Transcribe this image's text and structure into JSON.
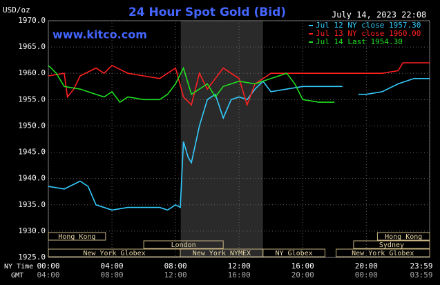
{
  "chart_data": {
    "type": "line",
    "title": "24 Hour Spot Gold (Bid)",
    "date": "July 14, 2023 22:08",
    "y_unit": "USD/oz",
    "watermark": "www.kitco.com",
    "x_axis_label": "NY Time",
    "x2_axis_label": "GMT",
    "xlim": [
      0,
      23.983
    ],
    "xticks": [
      {
        "value": 0,
        "label": "00:00"
      },
      {
        "value": 4,
        "label": "04:00"
      },
      {
        "value": 8,
        "label": "08:00"
      },
      {
        "value": 12,
        "label": "12:00"
      },
      {
        "value": 16,
        "label": "16:00"
      },
      {
        "value": 20,
        "label": "20:00"
      },
      {
        "value": 23.983,
        "label": "23:59"
      }
    ],
    "gmt_labels": [
      "04:00",
      "08:00",
      "12:00",
      "16:00",
      "20:00",
      "00:00",
      "03:59"
    ],
    "ylim": [
      1925,
      1970
    ],
    "yticks": [
      {
        "value": 1925,
        "label": "1925.0"
      },
      {
        "value": 1930,
        "label": "1930.0"
      },
      {
        "value": 1935,
        "label": "1935.0"
      },
      {
        "value": 1940,
        "label": "1940.0"
      },
      {
        "value": 1945,
        "label": "1945.0"
      },
      {
        "value": 1950,
        "label": "1950.0"
      },
      {
        "value": 1955,
        "label": "1955.0"
      },
      {
        "value": 1960,
        "label": "1960.0"
      },
      {
        "value": 1965,
        "label": "1965.0"
      },
      {
        "value": 1970,
        "label": "1970.0"
      }
    ],
    "grid": true,
    "legend": "top-right",
    "sessions": [
      "Hong Kong",
      "Hong Kong",
      "London",
      "Sydney",
      "New York Globex",
      "New York NYMEX",
      "NY Globex",
      "New York Globex"
    ],
    "series": [
      {
        "name": "Jul 12 NY close 1957.30",
        "color": "#33ccff",
        "x": [
          0,
          1,
          2,
          2.5,
          3,
          4,
          5,
          6,
          7,
          7.5,
          8,
          8.3,
          8.5,
          8.8,
          9,
          9.5,
          10,
          10.5,
          11,
          11.5,
          12,
          12.5,
          13,
          13.5,
          14,
          15,
          16,
          17,
          18.5,
          18.75,
          19.5,
          20,
          21,
          22,
          23,
          23.983
        ],
        "values": [
          1938.5,
          1938,
          1939.5,
          1938.5,
          1935,
          1934,
          1934.5,
          1934.5,
          1934.5,
          1934,
          1935,
          1934.5,
          1947,
          1944,
          1943,
          1950,
          1955,
          1956,
          1951.5,
          1955,
          1955.5,
          1955,
          1957,
          1958.5,
          1956.5,
          1957,
          1957.5,
          1957.5,
          1957.5,
          null,
          1956,
          1956,
          1956.5,
          1958,
          1959,
          1959
        ]
      },
      {
        "name": "Jul 13 NY close 1960.00",
        "color": "#ff2020",
        "x": [
          0,
          1,
          1.2,
          1.6,
          2,
          3,
          3.5,
          4,
          5,
          6,
          7,
          7.5,
          8,
          8.5,
          9,
          9.5,
          10,
          10.5,
          11,
          12,
          12.5,
          13,
          14,
          15,
          16,
          17,
          18,
          19,
          20,
          21,
          22,
          22.3,
          23,
          23.983
        ],
        "values": [
          1959.5,
          1960,
          1955.5,
          1957,
          1959.5,
          1961,
          1960,
          1961.5,
          1960,
          1959.5,
          1959,
          1960,
          1961,
          1955.5,
          1954,
          1960,
          1957,
          1959,
          1961,
          1959,
          1954,
          1958,
          1960,
          1960,
          1960,
          1960,
          1960,
          1960,
          1960,
          1960,
          1960.5,
          1962,
          1962,
          1962
        ]
      },
      {
        "name": "Jul 14 Last 1954.30",
        "color": "#20e020",
        "x": [
          0,
          0.5,
          1,
          2,
          3,
          3.5,
          4,
          4.5,
          5,
          6,
          7,
          7.5,
          8,
          8.5,
          9,
          10,
          10.5,
          11,
          12,
          13,
          14,
          15,
          15.5,
          16,
          17,
          18
        ],
        "values": [
          1961.5,
          1960,
          1957.5,
          1957,
          1956,
          1955.5,
          1956.5,
          1954.5,
          1955.5,
          1955,
          1955,
          1956,
          1958,
          1961,
          1956,
          1958,
          1955.5,
          1957.5,
          1958.5,
          1958,
          1959,
          1960,
          1958,
          1955,
          1954.5,
          1954.5
        ]
      }
    ]
  }
}
